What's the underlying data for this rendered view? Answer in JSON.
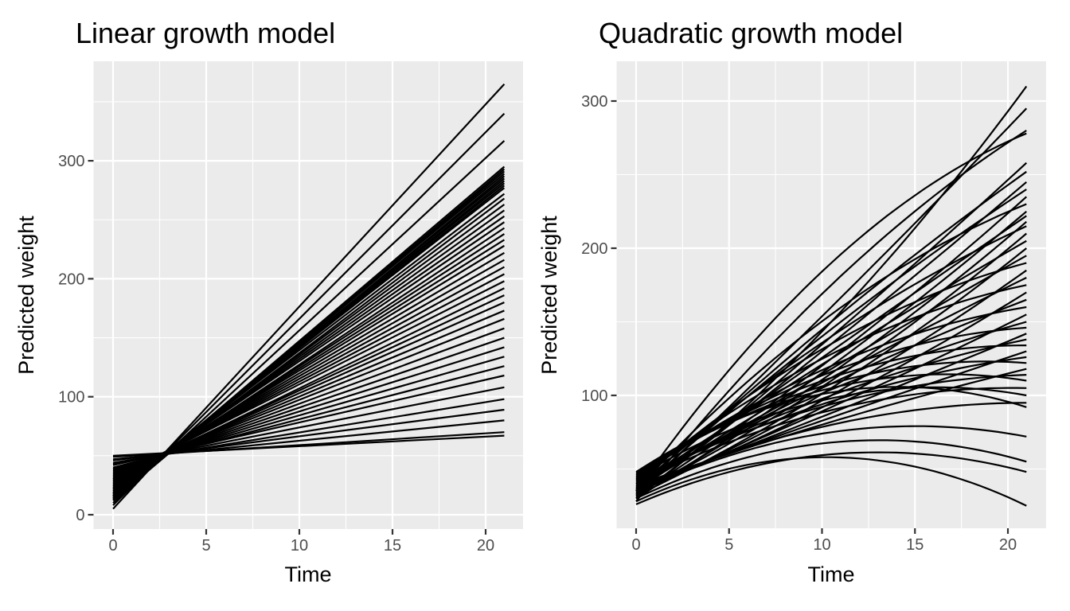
{
  "styles": {
    "panel_background": "#EBEBEB",
    "grid_color": "#FFFFFF",
    "line_color": "#000000",
    "tick_label_color": "#4D4D4D",
    "tick_mark_color": "#333333",
    "title_color": "#000000"
  },
  "chart_data": [
    {
      "type": "line",
      "title": "Linear growth model",
      "xlabel": "Time",
      "ylabel": "Predicted weight",
      "x_ticks": [
        0,
        5,
        10,
        15,
        20
      ],
      "y_ticks": [
        0,
        100,
        200,
        300
      ],
      "xlim": [
        -1.05,
        22.05
      ],
      "ylim": [
        -12.5,
        384
      ],
      "x_data_range": [
        0,
        21
      ],
      "grid": true,
      "legend": "none",
      "series_note": "one straight fitted line per subject; pairs are [predicted weight at Time 0, predicted weight at Time 21]",
      "lines_t0_t21": [
        [
          5,
          365
        ],
        [
          8,
          340
        ],
        [
          10,
          317
        ],
        [
          13,
          295
        ],
        [
          12,
          293
        ],
        [
          14,
          291
        ],
        [
          15,
          289
        ],
        [
          13,
          287
        ],
        [
          16,
          285
        ],
        [
          15,
          283
        ],
        [
          17,
          281
        ],
        [
          16,
          279
        ],
        [
          18,
          277
        ],
        [
          19,
          272
        ],
        [
          18,
          268
        ],
        [
          20,
          263
        ],
        [
          21,
          258
        ],
        [
          22,
          253
        ],
        [
          23,
          248
        ],
        [
          22,
          243
        ],
        [
          24,
          238
        ],
        [
          25,
          233
        ],
        [
          26,
          228
        ],
        [
          27,
          222
        ],
        [
          28,
          216
        ],
        [
          29,
          210
        ],
        [
          30,
          204
        ],
        [
          31,
          198
        ],
        [
          30,
          192
        ],
        [
          32,
          186
        ],
        [
          33,
          180
        ],
        [
          34,
          173
        ],
        [
          35,
          166
        ],
        [
          36,
          158
        ],
        [
          37,
          150
        ],
        [
          38,
          142
        ],
        [
          39,
          134
        ],
        [
          40,
          126
        ],
        [
          42,
          118
        ],
        [
          43,
          108
        ],
        [
          44,
          98
        ],
        [
          46,
          89
        ],
        [
          47,
          80
        ],
        [
          49,
          70
        ],
        [
          50,
          67
        ]
      ]
    },
    {
      "type": "line",
      "title": "Quadratic growth model",
      "xlabel": "Time",
      "ylabel": "Predicted weight",
      "x_ticks": [
        0,
        5,
        10,
        15,
        20
      ],
      "y_ticks": [
        100,
        200,
        300
      ],
      "xlim": [
        -1.05,
        22.05
      ],
      "ylim": [
        9.7,
        327
      ],
      "x_data_range": [
        0,
        21
      ],
      "grid": true,
      "legend": "none",
      "series_note": "one quadratic fitted curve per subject; triples are predicted weight at Time 0, Time 10.5 and Time 21",
      "curves_t0_t10p5_t21": [
        [
          30,
          150,
          310
        ],
        [
          32,
          160,
          295
        ],
        [
          28,
          175,
          280
        ],
        [
          35,
          190,
          278
        ],
        [
          30,
          140,
          258
        ],
        [
          33,
          150,
          252
        ],
        [
          31,
          135,
          245
        ],
        [
          34,
          145,
          240
        ],
        [
          32,
          125,
          235
        ],
        [
          36,
          155,
          230
        ],
        [
          30,
          120,
          225
        ],
        [
          35,
          130,
          222
        ],
        [
          33,
          115,
          218
        ],
        [
          37,
          140,
          215
        ],
        [
          34,
          110,
          210
        ],
        [
          38,
          125,
          205
        ],
        [
          32,
          105,
          200
        ],
        [
          36,
          118,
          195
        ],
        [
          40,
          135,
          190
        ],
        [
          34,
          100,
          185
        ],
        [
          38,
          112,
          180
        ],
        [
          42,
          128,
          175
        ],
        [
          35,
          95,
          170
        ],
        [
          39,
          108,
          165
        ],
        [
          43,
          120,
          160
        ],
        [
          36,
          92,
          155
        ],
        [
          40,
          104,
          150
        ],
        [
          44,
          116,
          146
        ],
        [
          37,
          88,
          142
        ],
        [
          41,
          100,
          138
        ],
        [
          45,
          112,
          134
        ],
        [
          38,
          85,
          130
        ],
        [
          42,
          96,
          126
        ],
        [
          46,
          108,
          122
        ],
        [
          39,
          82,
          118
        ],
        [
          43,
          94,
          114
        ],
        [
          47,
          105,
          110
        ],
        [
          40,
          90,
          105
        ],
        [
          44,
          98,
          100
        ],
        [
          36,
          80,
          95
        ],
        [
          48,
          102,
          92
        ],
        [
          34,
          75,
          72
        ],
        [
          30,
          68,
          55
        ],
        [
          26,
          60,
          48
        ],
        [
          28,
          58,
          25
        ]
      ]
    }
  ]
}
